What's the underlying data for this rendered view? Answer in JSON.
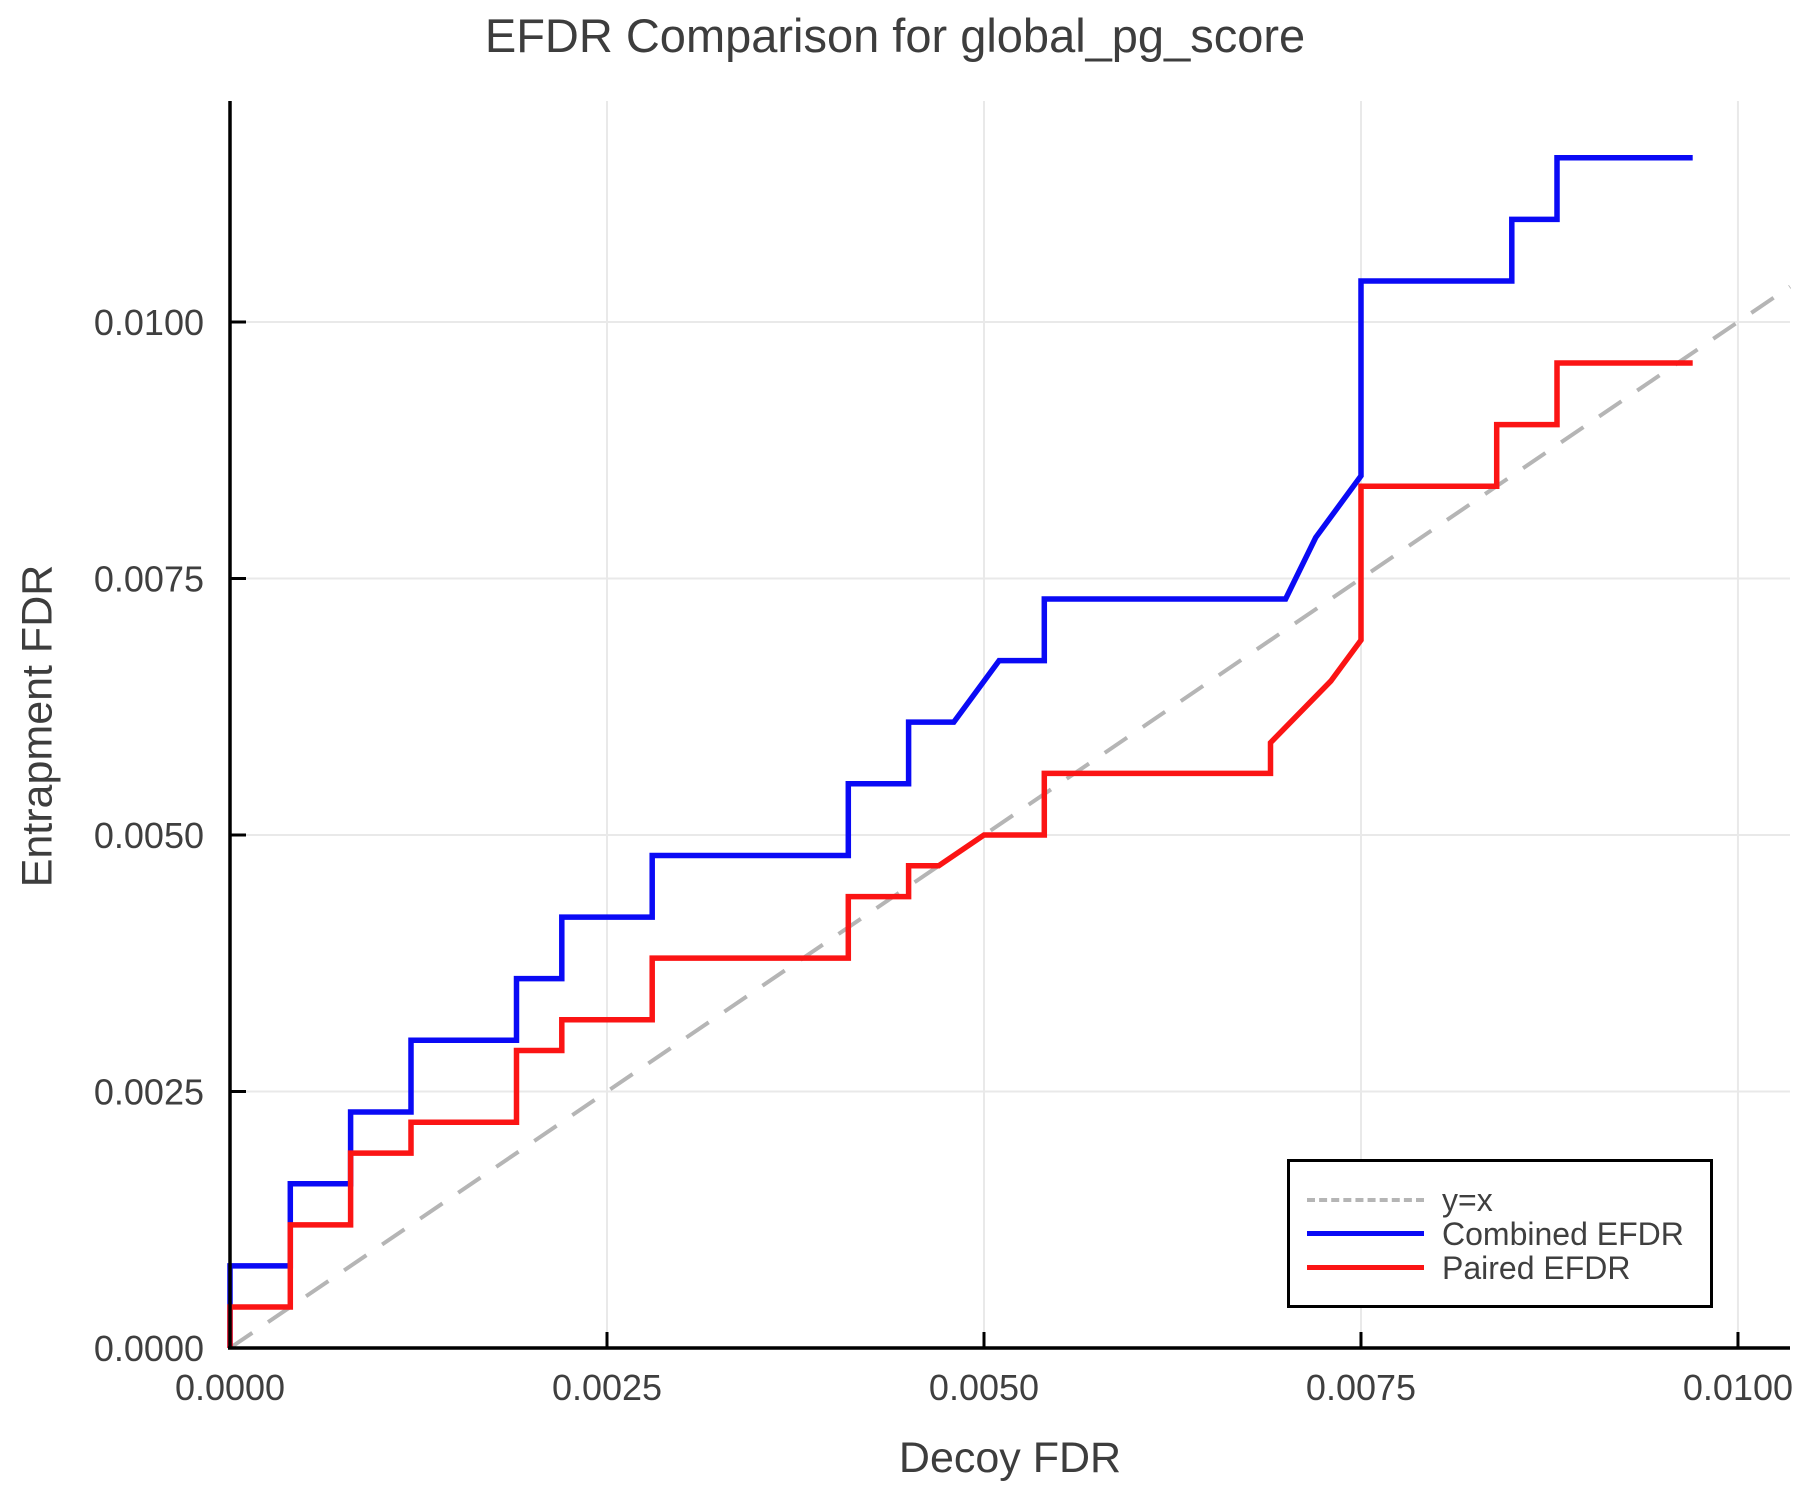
{
  "title": "EFDR Comparison for global_pg_score",
  "chart_data": {
    "type": "line",
    "title": "EFDR Comparison for global_pg_score",
    "xlabel": "Decoy FDR",
    "ylabel": "Entrapment FDR",
    "xlim": [
      0,
      0.010345
    ],
    "ylim": [
      0,
      0.012154
    ],
    "grid": true,
    "grid_color": "#e9e9e9",
    "axis_color": "#000000",
    "tick_label_color": "#3f3f3f",
    "x_ticks": [
      0,
      0.0025,
      0.005,
      0.0075,
      0.01
    ],
    "x_tick_labels": [
      "0.0000",
      "0.0025",
      "0.0050",
      "0.0075",
      "0.0100"
    ],
    "y_ticks": [
      0,
      0.0025,
      0.005,
      0.0075,
      0.01
    ],
    "y_tick_labels": [
      "0.0000",
      "0.0025",
      "0.0050",
      "0.0075",
      "0.0100"
    ],
    "legend_position": "lower right",
    "series": [
      {
        "name": "y=x",
        "style": "dashed",
        "color": "#b5b5b5",
        "points": [
          [
            0,
            0
          ],
          [
            0.010345,
            0.010345
          ]
        ]
      },
      {
        "name": "Combined EFDR",
        "style": "solid",
        "color": "#0a0af5",
        "points": [
          [
            0,
            0
          ],
          [
            0,
            0.0008
          ],
          [
            0.0004,
            0.0008
          ],
          [
            0.0004,
            0.0016
          ],
          [
            0.0008,
            0.0016
          ],
          [
            0.0008,
            0.0023
          ],
          [
            0.0012,
            0.0023
          ],
          [
            0.0012,
            0.003
          ],
          [
            0.0019,
            0.003
          ],
          [
            0.0019,
            0.0036
          ],
          [
            0.0022,
            0.0036
          ],
          [
            0.0022,
            0.0042
          ],
          [
            0.0028,
            0.0042
          ],
          [
            0.0028,
            0.0048
          ],
          [
            0.0041,
            0.0048
          ],
          [
            0.0041,
            0.0055
          ],
          [
            0.0045,
            0.0055
          ],
          [
            0.0045,
            0.0061
          ],
          [
            0.0048,
            0.0061
          ],
          [
            0.0051,
            0.0067
          ],
          [
            0.0054,
            0.0067
          ],
          [
            0.0054,
            0.0073
          ],
          [
            0.007,
            0.0073
          ],
          [
            0.0072,
            0.0079
          ],
          [
            0.0075,
            0.0085
          ],
          [
            0.0075,
            0.0104
          ],
          [
            0.0085,
            0.0104
          ],
          [
            0.0085,
            0.011
          ],
          [
            0.0088,
            0.011
          ],
          [
            0.0088,
            0.0116
          ],
          [
            0.0097,
            0.0116
          ]
        ]
      },
      {
        "name": "Paired EFDR",
        "style": "solid",
        "color": "#fb1414",
        "points": [
          [
            0,
            0
          ],
          [
            0,
            0.0004
          ],
          [
            0.0004,
            0.0004
          ],
          [
            0.0004,
            0.0012
          ],
          [
            0.0008,
            0.0012
          ],
          [
            0.0008,
            0.0019
          ],
          [
            0.0012,
            0.0019
          ],
          [
            0.0012,
            0.0022
          ],
          [
            0.0019,
            0.0022
          ],
          [
            0.0019,
            0.0029
          ],
          [
            0.0022,
            0.0029
          ],
          [
            0.0022,
            0.0032
          ],
          [
            0.0028,
            0.0032
          ],
          [
            0.0028,
            0.0038
          ],
          [
            0.0041,
            0.0038
          ],
          [
            0.0041,
            0.0044
          ],
          [
            0.0045,
            0.0044
          ],
          [
            0.0045,
            0.0047
          ],
          [
            0.0047,
            0.0047
          ],
          [
            0.005,
            0.005
          ],
          [
            0.0054,
            0.005
          ],
          [
            0.0054,
            0.0056
          ],
          [
            0.0069,
            0.0056
          ],
          [
            0.0069,
            0.0059
          ],
          [
            0.0073,
            0.0065
          ],
          [
            0.0075,
            0.0069
          ],
          [
            0.0075,
            0.0084
          ],
          [
            0.0084,
            0.0084
          ],
          [
            0.0084,
            0.009
          ],
          [
            0.0088,
            0.009
          ],
          [
            0.0088,
            0.0096
          ],
          [
            0.0097,
            0.0096
          ]
        ]
      }
    ]
  },
  "legend": {
    "entries": [
      {
        "label": "y=x"
      },
      {
        "label": "Combined EFDR"
      },
      {
        "label": "Paired EFDR"
      }
    ]
  }
}
